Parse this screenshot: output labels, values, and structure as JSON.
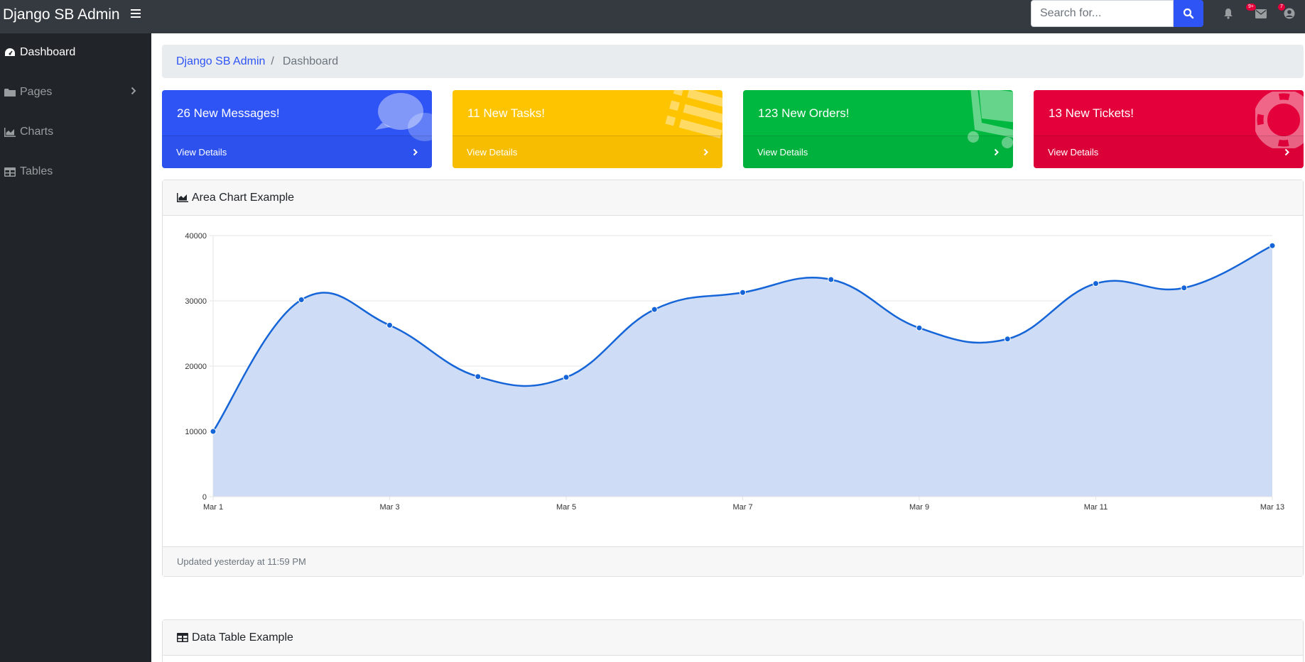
{
  "navbar": {
    "brand": "Django SB Admin",
    "search_placeholder": "Search for...",
    "alerts_badge": "9+",
    "messages_badge": "7"
  },
  "sidebar": {
    "items": [
      {
        "label": "Dashboard",
        "icon": "tachometer-icon"
      },
      {
        "label": "Pages",
        "icon": "folder-icon"
      },
      {
        "label": "Charts",
        "icon": "area-chart-icon"
      },
      {
        "label": "Tables",
        "icon": "table-icon"
      }
    ]
  },
  "breadcrumb": {
    "root": "Django SB Admin",
    "current": "Dashboard"
  },
  "cards": [
    {
      "title": "26 New Messages!",
      "link": "View Details",
      "color": "#2e54f5",
      "icon": "comments-icon"
    },
    {
      "title": "11 New Tasks!",
      "link": "View Details",
      "color": "#ffc400",
      "icon": "list-icon"
    },
    {
      "title": "123 New Orders!",
      "link": "View Details",
      "color": "#00b83f",
      "icon": "shopping-cart-icon"
    },
    {
      "title": "13 New Tickets!",
      "link": "View Details",
      "color": "#e4003a",
      "icon": "life-ring-icon"
    }
  ],
  "area_card": {
    "title": "Area Chart Example",
    "footer": "Updated yesterday at 11:59 PM"
  },
  "table_card": {
    "title": "Data Table Example"
  },
  "chart_data": {
    "type": "area",
    "title": "",
    "xlabel": "",
    "ylabel": "",
    "x": [
      "Mar 1",
      "Mar 2",
      "Mar 3",
      "Mar 4",
      "Mar 5",
      "Mar 6",
      "Mar 7",
      "Mar 8",
      "Mar 9",
      "Mar 10",
      "Mar 11",
      "Mar 12",
      "Mar 13"
    ],
    "x_tick_labels": [
      "Mar 1",
      "Mar 3",
      "Mar 5",
      "Mar 7",
      "Mar 9",
      "Mar 11",
      "Mar 13"
    ],
    "y_ticks": [
      "0",
      "10000",
      "20000",
      "30000",
      "40000"
    ],
    "series": [
      {
        "values": [
          10000,
          30162,
          26263,
          18394,
          18287,
          28682,
          31274,
          33259,
          25849,
          24159,
          32651,
          31984,
          38451
        ]
      }
    ],
    "ylim": [
      0,
      40000
    ],
    "grid": true,
    "line_color": "#1565d8",
    "fill_color": "#cfdcf5"
  }
}
